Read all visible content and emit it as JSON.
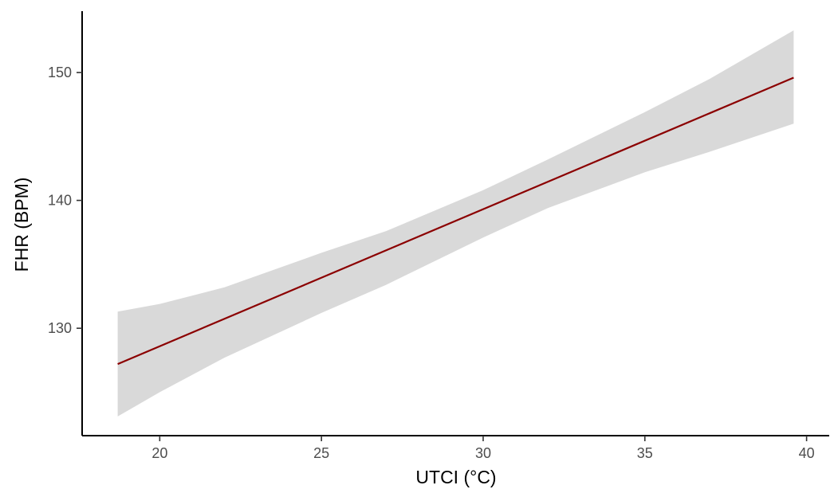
{
  "chart_data": {
    "type": "line",
    "title": "",
    "xlabel": "UTCI (°C)",
    "ylabel": "FHR (BPM)",
    "xlim": [
      17.6,
      40.7
    ],
    "ylim": [
      121.6,
      154.8
    ],
    "x_ticks": [
      20,
      25,
      30,
      35,
      40
    ],
    "x_tick_labels": [
      "20",
      "25",
      "30",
      "35",
      "40"
    ],
    "y_ticks": [
      130,
      140,
      150
    ],
    "y_tick_labels": [
      "130",
      "140",
      "150"
    ],
    "grid": false,
    "legend": "none",
    "series": [
      {
        "x": [
          18.7,
          39.6
        ],
        "values": [
          127.2,
          149.6
        ],
        "color": "#8B0000"
      }
    ],
    "confidence_band": {
      "color": "#d9d9d9",
      "x": [
        18.7,
        20,
        22,
        25,
        27,
        30,
        32,
        35,
        37,
        39.6
      ],
      "lower": [
        123.1,
        125.0,
        127.7,
        131.2,
        133.4,
        137.1,
        139.4,
        142.2,
        143.8,
        146.0
      ],
      "upper": [
        131.3,
        131.9,
        133.2,
        135.9,
        137.6,
        140.8,
        143.2,
        146.9,
        149.5,
        153.3
      ]
    }
  }
}
